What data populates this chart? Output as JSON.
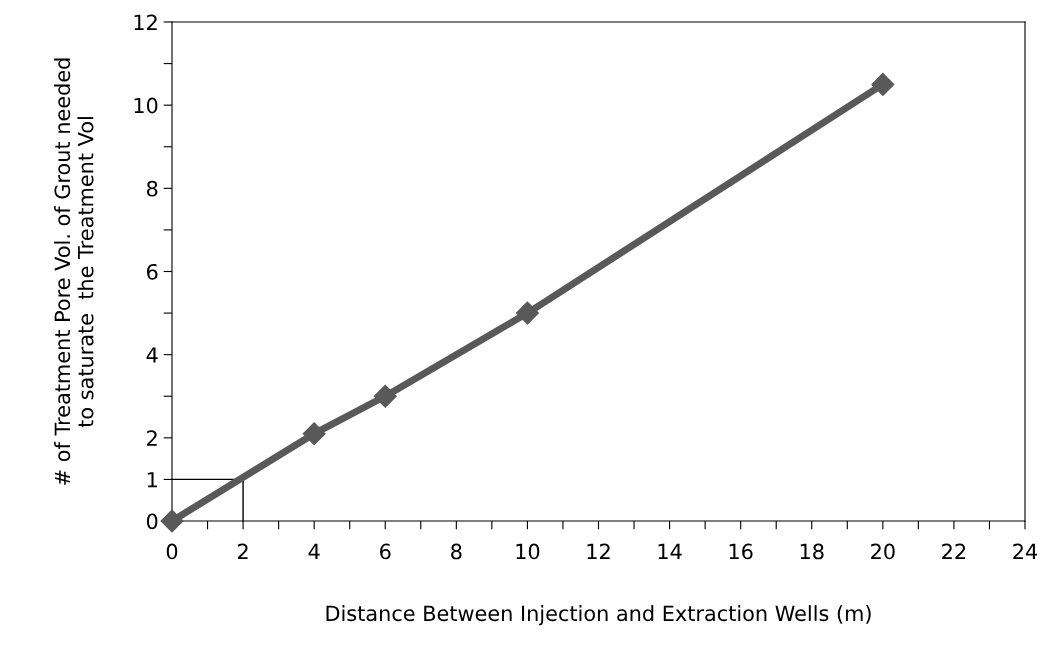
{
  "chart_data": {
    "type": "line",
    "xlabel": "Distance Between Injection and Extraction Wells (m)",
    "ylabel": "# of Treatment Pore Vol. of Grout needed\nto saturate  the Treatment Vol",
    "series": [
      {
        "color": "#595959",
        "x": [
          0,
          4,
          6,
          10,
          20
        ],
        "values": [
          0,
          2.1,
          3.0,
          5.0,
          10.5
        ],
        "marker": "diamond",
        "line_style": "solid"
      },
      {
        "type": "line",
        "color": "#000000",
        "x": [
          0,
          2,
          2
        ],
        "values": [
          1,
          1,
          0
        ],
        "marker": "none",
        "line_style": "solid"
      }
    ],
    "xlim": [
      0,
      24
    ],
    "ylim": [
      0,
      12
    ],
    "xticks": [
      0,
      {
        "value": 1,
        "label": null
      },
      2,
      {
        "value": 3,
        "label": null
      },
      4,
      {
        "value": 5,
        "label": null
      },
      6,
      {
        "value": 7,
        "label": null
      },
      8,
      {
        "value": 9,
        "label": null
      },
      10,
      {
        "value": 11,
        "label": null
      },
      12,
      {
        "value": 13,
        "label": null
      },
      14,
      {
        "value": 15,
        "label": null
      },
      16,
      {
        "value": 17,
        "label": null
      },
      18,
      {
        "value": 19,
        "label": null
      },
      20,
      {
        "value": 21,
        "label": null
      },
      22,
      {
        "value": 23,
        "label": null
      },
      24
    ],
    "yticks": [
      0,
      1,
      2,
      {
        "value": 3,
        "label": null
      },
      4,
      {
        "value": 5,
        "label": null
      },
      6,
      {
        "value": 7,
        "label": null
      },
      8,
      {
        "value": 9,
        "label": null
      },
      10,
      {
        "value": 11,
        "label": null
      },
      12
    ],
    "grid": false
  }
}
